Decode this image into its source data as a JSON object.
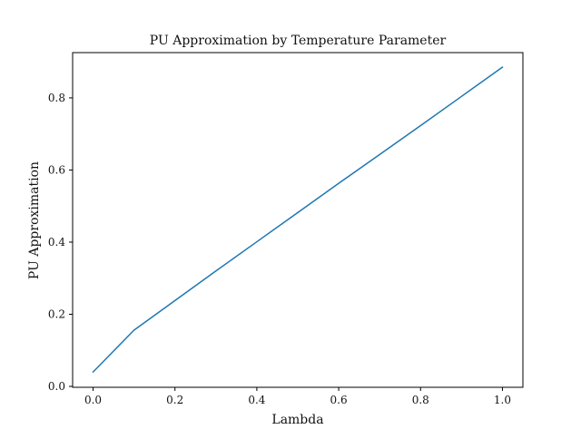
{
  "chart_data": {
    "type": "line",
    "title": "PU Approximation by Temperature Parameter",
    "xlabel": "Lambda",
    "ylabel": "PU Approximation",
    "xlim": [
      -0.05,
      1.05
    ],
    "ylim": [
      -0.0025,
      0.9255
    ],
    "xticks": [
      0.0,
      0.2,
      0.4,
      0.6,
      0.8,
      1.0
    ],
    "xtick_labels": [
      "0.0",
      "0.2",
      "0.4",
      "0.6",
      "0.8",
      "1.0"
    ],
    "yticks": [
      0.0,
      0.2,
      0.4,
      0.6,
      0.8
    ],
    "ytick_labels": [
      "0.0",
      "0.2",
      "0.4",
      "0.6",
      "0.8"
    ],
    "grid": false,
    "legend": "none",
    "series": [
      {
        "color": "#1f77b4",
        "x": [
          0.0,
          0.1,
          0.2,
          0.3,
          0.4,
          0.5,
          0.6,
          0.7,
          0.8,
          0.9,
          1.0
        ],
        "y": [
          0.04,
          0.156,
          0.238,
          0.32,
          0.401,
          0.482,
          0.563,
          0.643,
          0.723,
          0.804,
          0.885
        ]
      }
    ]
  }
}
